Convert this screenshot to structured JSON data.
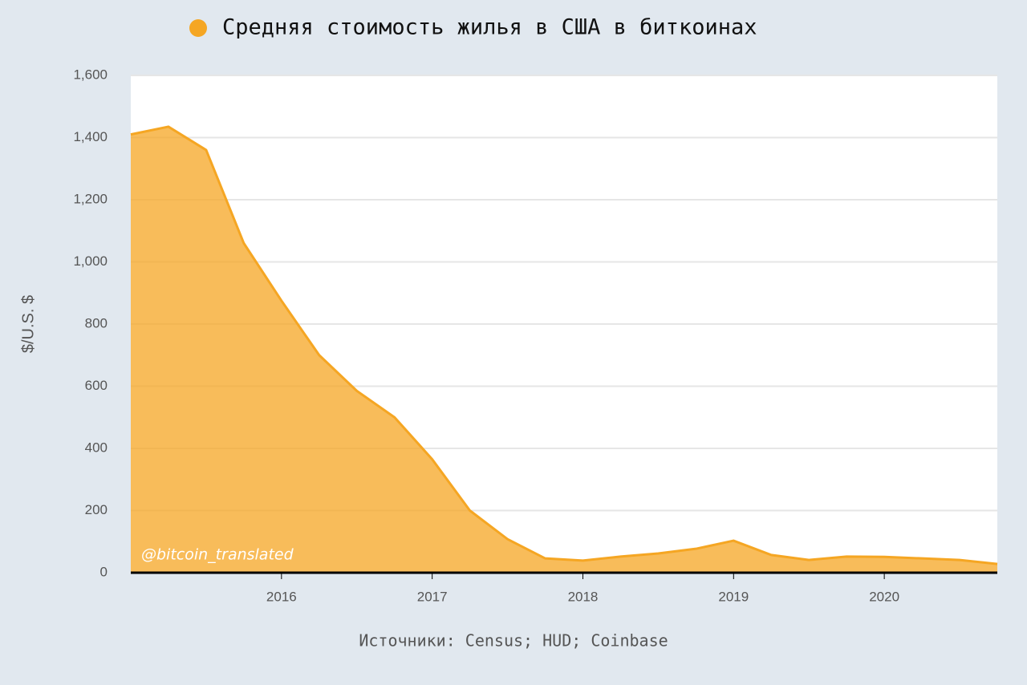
{
  "chart_data": {
    "type": "area",
    "x": [
      2015.0,
      2015.25,
      2015.5,
      2015.75,
      2016.0,
      2016.25,
      2016.5,
      2016.75,
      2017.0,
      2017.25,
      2017.5,
      2017.75,
      2018.0,
      2018.25,
      2018.5,
      2018.75,
      2019.0,
      2019.25,
      2019.5,
      2019.75,
      2020.0,
      2020.25,
      2020.5,
      2020.75
    ],
    "series": [
      {
        "name": "Средняя стоимость жилья в США в биткоинах",
        "color": "#f5a623",
        "values": [
          1410,
          1435,
          1360,
          1060,
          875,
          700,
          585,
          500,
          365,
          200,
          108,
          46,
          39,
          52,
          62,
          77,
          103,
          57,
          41,
          52,
          51,
          46,
          41,
          28
        ]
      }
    ],
    "xlim": [
      2015.0,
      2020.75
    ],
    "xticks": [
      2016,
      2017,
      2018,
      2019,
      2020
    ],
    "ylim": [
      0,
      1600
    ],
    "yticks": [
      0,
      200,
      400,
      600,
      800,
      {
        "value": 1000,
        "label": "1,000"
      },
      {
        "value": 1200,
        "label": "1,200"
      },
      {
        "value": 1400,
        "label": "1,400"
      },
      {
        "value": 1600,
        "label": "1,600"
      }
    ],
    "y_label": "$/U.S. $",
    "annotation": "@bitcoin_translated",
    "source": "Источники: Census; HUD; Coinbase",
    "grid": true
  }
}
